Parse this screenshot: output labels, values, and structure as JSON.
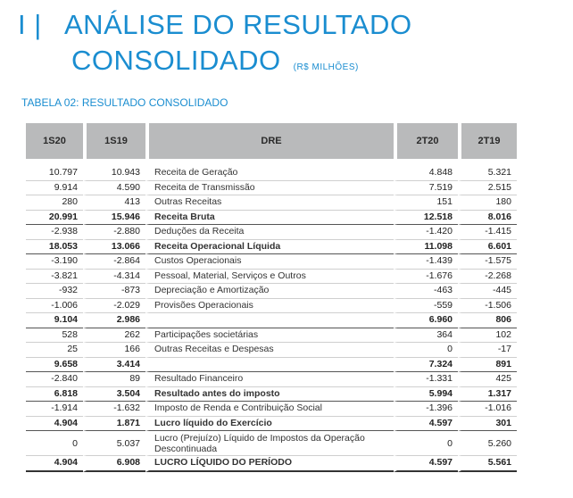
{
  "header": {
    "roman": "I |",
    "title_line1": "ANÁLISE DO RESULTADO",
    "title_line2": "CONSOLIDADO",
    "unit": "(R$ MILHÕES)"
  },
  "table": {
    "caption": "TABELA 02: RESULTADO CONSOLIDADO",
    "columns": [
      "1S20",
      "1S19",
      "DRE",
      "2T20",
      "2T19"
    ],
    "rows": [
      {
        "c": [
          "10.797",
          "10.943",
          "Receita de Geração",
          "4.848",
          "5.321"
        ]
      },
      {
        "c": [
          "9.914",
          "4.590",
          "Receita de Transmissão",
          "7.519",
          "2.515"
        ]
      },
      {
        "c": [
          "280",
          "413",
          "Outras Receitas",
          "151",
          "180"
        ]
      },
      {
        "c": [
          "20.991",
          "15.946",
          "Receita Bruta",
          "12.518",
          "8.016"
        ],
        "bold": true
      },
      {
        "c": [
          "-2.938",
          "-2.880",
          "Deduções da Receita",
          "-1.420",
          "-1.415"
        ]
      },
      {
        "c": [
          "18.053",
          "13.066",
          "Receita Operacional Líquida",
          "11.098",
          "6.601"
        ],
        "bold": true
      },
      {
        "c": [
          "-3.190",
          "-2.864",
          "Custos Operacionais",
          "-1.439",
          "-1.575"
        ]
      },
      {
        "c": [
          "-3.821",
          "-4.314",
          "Pessoal, Material, Serviços e Outros",
          "-1.676",
          "-2.268"
        ]
      },
      {
        "c": [
          "-932",
          "-873",
          "Depreciação e Amortização",
          "-463",
          "-445"
        ]
      },
      {
        "c": [
          "-1.006",
          "-2.029",
          "Provisões Operacionais",
          "-559",
          "-1.506"
        ]
      },
      {
        "c": [
          "9.104",
          "2.986",
          "",
          "6.960",
          "806"
        ],
        "bold": true
      },
      {
        "c": [
          "528",
          "262",
          "Participações societárias",
          "364",
          "102"
        ]
      },
      {
        "c": [
          "25",
          "166",
          "Outras Receitas e Despesas",
          "0",
          "-17"
        ]
      },
      {
        "c": [
          "9.658",
          "3.414",
          "",
          "7.324",
          "891"
        ],
        "bold": true
      },
      {
        "c": [
          "-2.840",
          "89",
          "Resultado Financeiro",
          "-1.331",
          "425"
        ]
      },
      {
        "c": [
          "6.818",
          "3.504",
          "Resultado antes do imposto",
          "5.994",
          "1.317"
        ],
        "bold": true
      },
      {
        "c": [
          "-1.914",
          "-1.632",
          "Imposto de Renda e Contribuição Social",
          "-1.396",
          "-1.016"
        ]
      },
      {
        "c": [
          "4.904",
          "1.871",
          "Lucro líquido do Exercício",
          "4.597",
          "301"
        ],
        "bold": true
      },
      {
        "c": [
          "0",
          "5.037",
          "Lucro (Prejuízo) Líquido de Impostos da Operação Descontinuada",
          "0",
          "5.260"
        ],
        "tall": true
      },
      {
        "c": [
          "4.904",
          "6.908",
          "LUCRO LÍQUIDO DO PERÍODO",
          "4.597",
          "5.561"
        ],
        "bold": true,
        "last": true
      }
    ]
  }
}
